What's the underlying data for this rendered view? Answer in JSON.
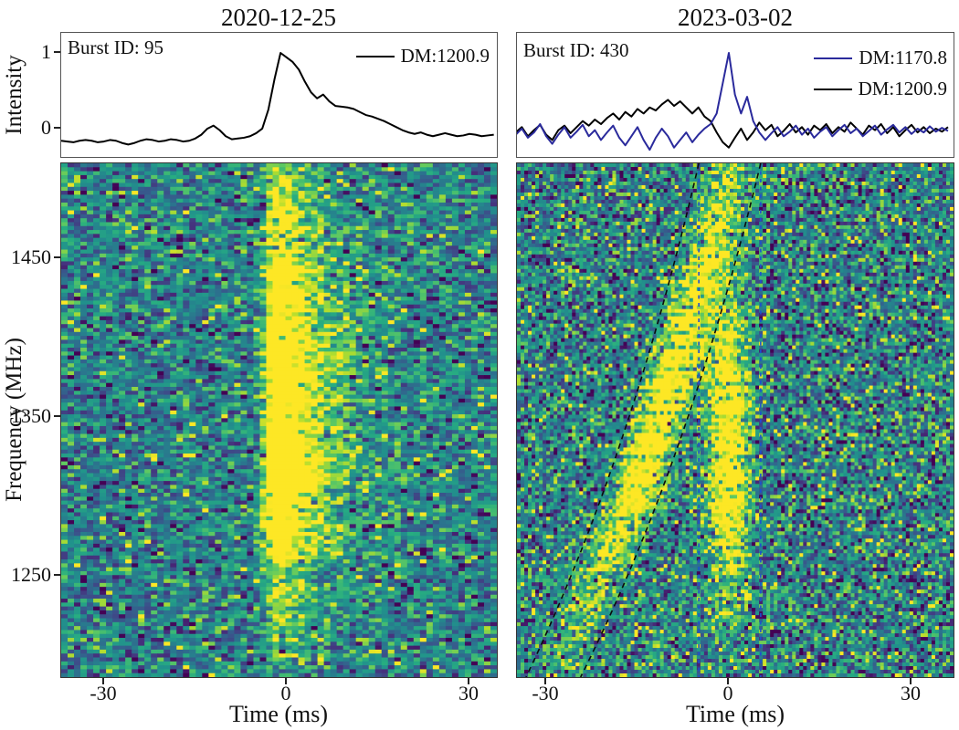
{
  "figure": {
    "background": "#ffffff",
    "kind": "FRB burst dynamic spectra comparison"
  },
  "axes": {
    "intensity_label": "Intensity",
    "intensity_ticks": [
      "1",
      "0"
    ],
    "frequency_label": "Frequency (MHz)",
    "freq_ticks": [
      "1450",
      "1350",
      "1250"
    ],
    "time_label": "Time (ms)",
    "time_ticks": [
      "-30",
      "0",
      "30"
    ]
  },
  "colors": {
    "profile_black": "#000000",
    "profile_blue": "#2a2a9c",
    "overlay_curve_black": "#0b0b0b",
    "overlay_vertical_blue": "#1d4fd0",
    "panel_border": "#333333",
    "viridis_stops": [
      "#440154",
      "#472d7b",
      "#3b528b",
      "#2c728e",
      "#21918c",
      "#27ad81",
      "#5ec962",
      "#addc30",
      "#fde725"
    ]
  },
  "chart_data": [
    {
      "type": "heatmap",
      "title": "2020-12-25",
      "annotations": {
        "burst_id": "Burst ID: 95"
      },
      "profile": {
        "type": "line",
        "ylim": [
          -0.398,
          1.265
        ],
        "yticks": [
          1,
          0
        ],
        "t_start_ms": -37.0,
        "t_step_ms": 1.0,
        "series": [
          {
            "name": "DM:1200.9",
            "color": "#000000",
            "values": [
              -0.16,
              -0.17,
              -0.18,
              -0.16,
              -0.15,
              -0.16,
              -0.18,
              -0.17,
              -0.15,
              -0.16,
              -0.19,
              -0.21,
              -0.19,
              -0.16,
              -0.14,
              -0.15,
              -0.17,
              -0.16,
              -0.14,
              -0.15,
              -0.17,
              -0.16,
              -0.13,
              -0.08,
              0.0,
              0.04,
              -0.02,
              -0.1,
              -0.14,
              -0.13,
              -0.12,
              -0.1,
              -0.06,
              0.0,
              0.25,
              0.65,
              1.0,
              0.94,
              0.88,
              0.78,
              0.62,
              0.48,
              0.4,
              0.45,
              0.36,
              0.3,
              0.29,
              0.28,
              0.26,
              0.22,
              0.18,
              0.16,
              0.13,
              0.1,
              0.06,
              0.02,
              -0.02,
              -0.05,
              -0.07,
              -0.05,
              -0.08,
              -0.1,
              -0.08,
              -0.06,
              -0.08,
              -0.1,
              -0.09,
              -0.07,
              -0.08,
              -0.1,
              -0.09,
              -0.08
            ]
          }
        ]
      },
      "waterfall": {
        "time_range_ms": [
          -37.0,
          34.8
        ],
        "freq_range_mhz": [
          1510,
          1185
        ],
        "freq_ticks_mhz": [
          1450,
          1350,
          1250
        ],
        "grid": {
          "cols": 68,
          "rows": 131
        },
        "noise": {
          "seed": 1337,
          "mean": 0.45,
          "sd": 0.18,
          "dark_fraction": 0.05,
          "bright_fraction": 0.04
        },
        "components": [
          {
            "type": "burst_tail",
            "t0_ms": -1.0,
            "rise_ms": 1.6,
            "decay_ms": 6.0,
            "freq_center_frac": 0.44,
            "freq_sigma_frac": 0.27,
            "amp": 1.55
          }
        ],
        "overlays": {
          "black_dashed_curves": [],
          "blue_dashed_verticals_ms": []
        },
        "colormap": "viridis"
      }
    },
    {
      "type": "heatmap",
      "title": "2023-03-02",
      "annotations": {
        "burst_id": "Burst ID: 430"
      },
      "profile": {
        "type": "line",
        "ylim": [
          -0.398,
          1.265
        ],
        "yticks": [
          1,
          0
        ],
        "t_start_ms": -35.0,
        "t_step_ms": 1.0,
        "series": [
          {
            "name": "DM:1170.8",
            "color": "#2a2a9c",
            "values": [
              -0.08,
              0.0,
              -0.12,
              -0.05,
              0.06,
              -0.1,
              -0.2,
              -0.08,
              0.02,
              -0.12,
              -0.04,
              0.05,
              -0.1,
              -0.02,
              -0.15,
              -0.05,
              0.04,
              -0.12,
              -0.22,
              -0.1,
              0.02,
              -0.15,
              -0.28,
              -0.12,
              0.0,
              -0.1,
              -0.25,
              -0.15,
              -0.05,
              -0.18,
              -0.08,
              0.0,
              0.06,
              0.2,
              0.6,
              1.0,
              0.45,
              0.2,
              0.42,
              0.1,
              -0.05,
              -0.15,
              -0.06,
              0.02,
              -0.1,
              -0.04,
              0.04,
              -0.08,
              0.0,
              -0.12,
              -0.04,
              0.02,
              -0.1,
              -0.02,
              0.05,
              -0.06,
              0.0,
              -0.1,
              -0.03,
              0.04,
              -0.08,
              -0.01,
              0.05,
              -0.05,
              0.02,
              -0.07,
              0.0,
              -0.05,
              0.03,
              -0.04,
              0.01,
              -0.03
            ]
          },
          {
            "name": "DM:1200.9",
            "color": "#000000",
            "values": [
              -0.05,
              0.02,
              -0.1,
              -0.02,
              0.05,
              -0.08,
              -0.15,
              -0.02,
              0.04,
              -0.06,
              0.02,
              0.1,
              0.04,
              0.12,
              0.06,
              0.14,
              0.2,
              0.12,
              0.22,
              0.16,
              0.26,
              0.2,
              0.28,
              0.24,
              0.32,
              0.38,
              0.3,
              0.36,
              0.28,
              0.2,
              0.28,
              0.16,
              0.1,
              -0.05,
              -0.18,
              -0.25,
              -0.12,
              0.0,
              -0.15,
              -0.05,
              0.08,
              -0.02,
              0.05,
              -0.1,
              -0.03,
              0.06,
              -0.05,
              0.02,
              -0.08,
              0.04,
              -0.02,
              0.06,
              -0.06,
              0.02,
              -0.04,
              0.08,
              0.0,
              -0.08,
              0.04,
              -0.02,
              0.06,
              -0.06,
              0.02,
              -0.1,
              -0.02,
              0.05,
              -0.05,
              0.02,
              -0.06,
              0.0,
              -0.04,
              0.02
            ]
          }
        ]
      },
      "waterfall": {
        "time_range_ms": [
          -34.8,
          37.2
        ],
        "freq_range_mhz": [
          1510,
          1185
        ],
        "freq_ticks_mhz": [
          1450,
          1350,
          1250
        ],
        "grid": {
          "cols": 119,
          "rows": 141
        },
        "noise": {
          "seed": 2024,
          "mean": 0.45,
          "sd": 0.22,
          "dark_fraction": 0.08,
          "bright_fraction": 0.07
        },
        "components": [
          {
            "type": "vertical",
            "t0_ms": 0.0,
            "sigma_ms": 2.2,
            "freq_center_frac": 0.55,
            "freq_sigma_frac": 0.2,
            "amp": 0.85
          },
          {
            "type": "dispersed",
            "t_top_ms": 0.3,
            "sweep_ms": 28.5,
            "sigma_ms": 2.6,
            "freq_center_frac": 0.45,
            "freq_sigma_frac": 0.3,
            "amp": 0.8
          }
        ],
        "overlays": {
          "black_dashed_curves": [
            {
              "t_top_ms": -4.8,
              "sweep_ms": 28.5
            },
            {
              "t_top_ms": 5.4,
              "sweep_ms": 29.7
            }
          ],
          "blue_dashed_verticals_ms": [
            -4.8,
            5.4
          ]
        },
        "colormap": "viridis"
      }
    }
  ]
}
